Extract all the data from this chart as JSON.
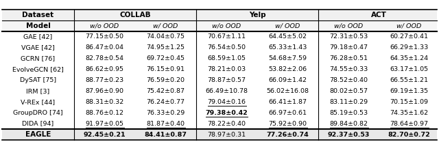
{
  "models": [
    "GAE [42]",
    "VGAE [42]",
    "GCRN [76]",
    "EvolveGCN [62]",
    "DySAT [75]",
    "IRM [3]",
    "V-REx [44]",
    "GroupDRO [74]",
    "DIDA [94]"
  ],
  "eagle_label": "EAGLE",
  "data": {
    "GAE [42]": [
      "77.15±0.50",
      "74.04±0.75",
      "70.67±1.11",
      "64.45±5.02",
      "72.31±0.53",
      "60.27±0.41"
    ],
    "VGAE [42]": [
      "86.47±0.04",
      "74.95±1.25",
      "76.54±0.50",
      "65.33±1.43",
      "79.18±0.47",
      "66.29±1.33"
    ],
    "GCRN [76]": [
      "82.78±0.54",
      "69.72±0.45",
      "68.59±1.05",
      "54.68±7.59",
      "76.28±0.51",
      "64.35±1.24"
    ],
    "EvolveGCN [62]": [
      "86.62±0.95",
      "76.15±0.91",
      "78.21±0.03",
      "53.82±2.06",
      "74.55±0.33",
      "63.17±1.05"
    ],
    "DySAT [75]": [
      "88.77±0.23",
      "76.59±0.20",
      "78.87±0.57",
      "66.09±1.42",
      "78.52±0.40",
      "66.55±1.21"
    ],
    "IRM [3]": [
      "87.96±0.90",
      "75.42±0.87",
      "66.49±10.78",
      "56.02±16.08",
      "80.02±0.57",
      "69.19±1.35"
    ],
    "V-REx [44]": [
      "88.31±0.32",
      "76.24±0.77",
      "79.04±0.16",
      "66.41±1.87",
      "83.11±0.29",
      "70.15±1.09"
    ],
    "GroupDRO [74]": [
      "88.76±0.12",
      "76.33±0.29",
      "79.38±0.42",
      "66.97±0.61",
      "85.19±0.53",
      "74.35±1.62"
    ],
    "DIDA [94]": [
      "91.97±0.05",
      "81.87±0.40",
      "78.22±0.40",
      "75.92±0.90",
      "89.84±0.82",
      "78.64±0.97"
    ]
  },
  "eagle": [
    "92.45±0.21",
    "84.41±0.87",
    "78.97±0.31",
    "77.26±0.74",
    "92.37±0.53",
    "82.70±0.72"
  ],
  "underline": {
    "DIDA [94]": [
      0,
      1,
      3,
      4,
      5
    ],
    "V-REx [44]": [
      2
    ],
    "GroupDRO [74]": [
      2
    ]
  },
  "eagle_bold_cols": [
    0,
    1,
    3,
    4,
    5
  ],
  "bold_model": {
    "GroupDRO [74]": [
      2
    ]
  },
  "col_headers": [
    "w/o OOD",
    "w/ OOD",
    "w/o OOD",
    "w/ OOD",
    "w/o OOD",
    "w/ OOD"
  ],
  "dataset_headers": [
    "COLLAB",
    "Yelp",
    "ACT"
  ],
  "background_color": "#ffffff"
}
